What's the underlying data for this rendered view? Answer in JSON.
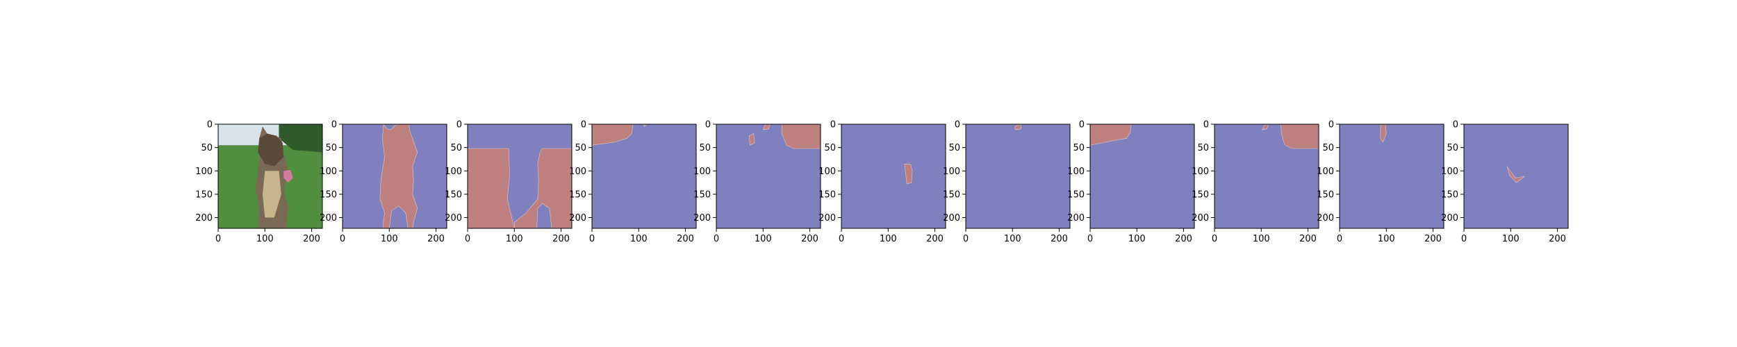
{
  "figure": {
    "background": "#ffffff",
    "colors": {
      "mask_background": "#8080bf",
      "mask_foreground": "#bf8080",
      "axis": "#000000"
    }
  },
  "chart_data": {
    "type": "heatmap",
    "description_of_panels": "11 image panels in a row: an input photo followed by 10 binary segmentation masks",
    "axes": {
      "xlim": [
        0,
        223
      ],
      "ylim": [
        223,
        0
      ],
      "xticks": [
        0,
        100,
        200
      ],
      "yticks": [
        0,
        50,
        100,
        150,
        200
      ],
      "grid": false
    },
    "panels": [
      {
        "kind": "photo",
        "content": "dog photo",
        "regions": [
          {
            "name": "sky",
            "color": "#d9e3ea",
            "polygon": [
              [
                0,
                0
              ],
              [
                223,
                0
              ],
              [
                223,
                55
              ],
              [
                0,
                55
              ]
            ]
          },
          {
            "name": "grass",
            "color": "#4f8f3f",
            "polygon": [
              [
                0,
                45
              ],
              [
                223,
                45
              ],
              [
                223,
                223
              ],
              [
                0,
                223
              ]
            ]
          },
          {
            "name": "trees",
            "color": "#2f5a2a",
            "polygon": [
              [
                130,
                0
              ],
              [
                223,
                0
              ],
              [
                223,
                60
              ],
              [
                160,
                55
              ],
              [
                130,
                30
              ]
            ]
          },
          {
            "name": "dog-body",
            "color": "#7a6a55",
            "polygon": [
              [
                95,
                5
              ],
              [
                105,
                20
              ],
              [
                120,
                25
              ],
              [
                135,
                30
              ],
              [
                140,
                60
              ],
              [
                150,
                100
              ],
              [
                140,
                140
              ],
              [
                150,
                180
              ],
              [
                145,
                223
              ],
              [
                85,
                223
              ],
              [
                88,
                180
              ],
              [
                80,
                140
              ],
              [
                85,
                100
              ],
              [
                90,
                60
              ],
              [
                88,
                30
              ]
            ]
          },
          {
            "name": "dog-head",
            "color": "#5b4a3a",
            "polygon": [
              [
                88,
                30
              ],
              [
                105,
                20
              ],
              [
                125,
                25
              ],
              [
                138,
                40
              ],
              [
                140,
                70
              ],
              [
                120,
                90
              ],
              [
                100,
                85
              ],
              [
                85,
                60
              ]
            ]
          },
          {
            "name": "dog-chest",
            "color": "#c8b58c",
            "polygon": [
              [
                100,
                100
              ],
              [
                130,
                100
              ],
              [
                135,
                150
              ],
              [
                120,
                200
              ],
              [
                100,
                200
              ],
              [
                95,
                150
              ]
            ]
          },
          {
            "name": "tongue",
            "color": "#d77aa0",
            "polygon": [
              [
                140,
                100
              ],
              [
                155,
                98
              ],
              [
                160,
                115
              ],
              [
                150,
                125
              ],
              [
                140,
                115
              ]
            ]
          }
        ]
      },
      {
        "kind": "mask",
        "regions": [
          {
            "polygon": [
              [
                88,
                0
              ],
              [
                95,
                10
              ],
              [
                103,
                12
              ],
              [
                112,
                3
              ],
              [
                118,
                0
              ],
              [
                142,
                0
              ],
              [
                144,
                15
              ],
              [
                150,
                30
              ],
              [
                160,
                60
              ],
              [
                150,
                90
              ],
              [
                152,
                120
              ],
              [
                150,
                150
              ],
              [
                160,
                180
              ],
              [
                152,
                210
              ],
              [
                150,
                223
              ],
              [
                140,
                223
              ],
              [
                135,
                190
              ],
              [
                120,
                175
              ],
              [
                105,
                185
              ],
              [
                100,
                223
              ],
              [
                86,
                223
              ],
              [
                90,
                190
              ],
              [
                80,
                160
              ],
              [
                82,
                120
              ],
              [
                90,
                70
              ],
              [
                85,
                30
              ]
            ]
          }
        ]
      },
      {
        "kind": "mask",
        "regions": [
          {
            "polygon": [
              [
                0,
                52
              ],
              [
                88,
                52
              ],
              [
                90,
                110
              ],
              [
                85,
                160
              ],
              [
                100,
                223
              ],
              [
                0,
                223
              ]
            ]
          },
          {
            "polygon": [
              [
                160,
                52
              ],
              [
                223,
                52
              ],
              [
                223,
                223
              ],
              [
                180,
                223
              ],
              [
                175,
                180
              ],
              [
                160,
                170
              ],
              [
                150,
                180
              ],
              [
                148,
                223
              ],
              [
                100,
                223
              ],
              [
                100,
                210
              ],
              [
                125,
                190
              ],
              [
                150,
                160
              ],
              [
                152,
                120
              ],
              [
                150,
                85
              ],
              [
                155,
                60
              ]
            ]
          }
        ]
      },
      {
        "kind": "mask",
        "regions": [
          {
            "polygon": [
              [
                0,
                0
              ],
              [
                88,
                0
              ],
              [
                85,
                20
              ],
              [
                75,
                30
              ],
              [
                50,
                38
              ],
              [
                0,
                45
              ]
            ]
          },
          {
            "polygon": [
              [
                110,
                0
              ],
              [
                118,
                0
              ],
              [
                112,
                5
              ]
            ]
          }
        ]
      },
      {
        "kind": "mask",
        "regions": [
          {
            "polygon": [
              [
                140,
                0
              ],
              [
                223,
                0
              ],
              [
                223,
                52
              ],
              [
                165,
                52
              ],
              [
                150,
                45
              ],
              [
                140,
                20
              ]
            ]
          },
          {
            "polygon": [
              [
                70,
                25
              ],
              [
                80,
                20
              ],
              [
                82,
                40
              ],
              [
                72,
                45
              ]
            ]
          },
          {
            "polygon": [
              [
                105,
                0
              ],
              [
                115,
                0
              ],
              [
                112,
                10
              ],
              [
                100,
                12
              ]
            ]
          }
        ]
      },
      {
        "kind": "mask",
        "regions": [
          {
            "polygon": [
              [
                135,
                85
              ],
              [
                148,
                86
              ],
              [
                152,
                100
              ],
              [
                150,
                125
              ],
              [
                140,
                128
              ],
              [
                138,
                110
              ]
            ]
          }
        ]
      },
      {
        "kind": "mask",
        "regions": [
          {
            "polygon": [
              [
                105,
                5
              ],
              [
                118,
                0
              ],
              [
                118,
                10
              ],
              [
                106,
                12
              ]
            ]
          }
        ]
      },
      {
        "kind": "mask",
        "regions": [
          {
            "polygon": [
              [
                0,
                0
              ],
              [
                88,
                0
              ],
              [
                86,
                18
              ],
              [
                78,
                30
              ],
              [
                45,
                36
              ],
              [
                0,
                45
              ]
            ]
          }
        ]
      },
      {
        "kind": "mask",
        "regions": [
          {
            "polygon": [
              [
                142,
                0
              ],
              [
                223,
                0
              ],
              [
                223,
                52
              ],
              [
                165,
                52
              ],
              [
                150,
                44
              ],
              [
                143,
                20
              ]
            ]
          },
          {
            "polygon": [
              [
                108,
                0
              ],
              [
                116,
                0
              ],
              [
                112,
                10
              ],
              [
                102,
                12
              ]
            ]
          }
        ]
      },
      {
        "kind": "mask",
        "regions": [
          {
            "polygon": [
              [
                88,
                0
              ],
              [
                98,
                0
              ],
              [
                100,
                20
              ],
              [
                93,
                38
              ],
              [
                87,
                30
              ]
            ]
          }
        ]
      },
      {
        "kind": "mask",
        "regions": [
          {
            "polygon": [
              [
                92,
                90
              ],
              [
                110,
                115
              ],
              [
                130,
                112
              ],
              [
                112,
                125
              ],
              [
                98,
                110
              ]
            ]
          }
        ]
      }
    ]
  }
}
